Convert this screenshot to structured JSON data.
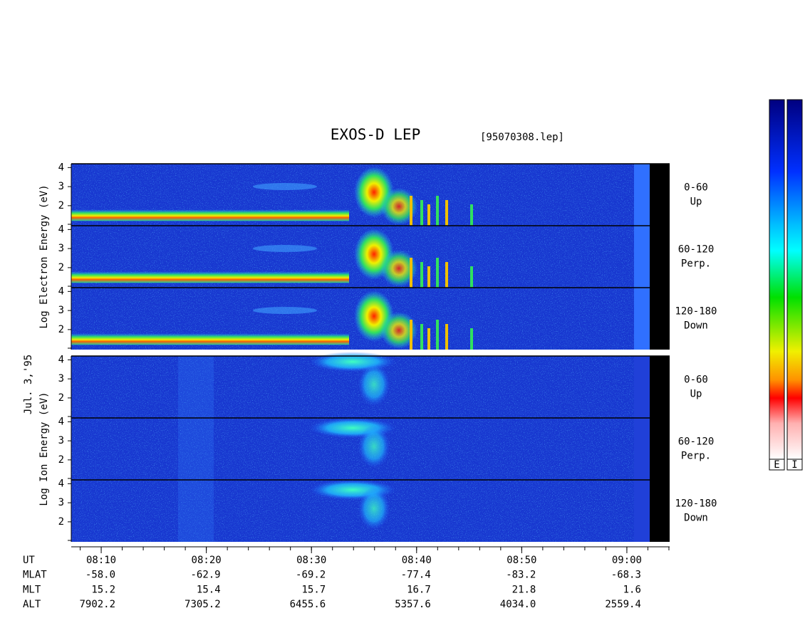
{
  "chart_data": {
    "type": "spectrogram",
    "title": "EXOS-D LEP",
    "file": "[95070308.lep]",
    "date": "Jul. 3,'95",
    "groups": [
      {
        "label": "Log Electron Energy (eV)",
        "panels": [
          {
            "label": "0-60",
            "sublabel": "Up"
          },
          {
            "label": "60-120",
            "sublabel": "Perp."
          },
          {
            "label": "120-180",
            "sublabel": "Down"
          }
        ]
      },
      {
        "label": "Log Ion Energy (eV)",
        "panels": [
          {
            "label": "0-60",
            "sublabel": "Up"
          },
          {
            "label": "60-120",
            "sublabel": "Perp."
          },
          {
            "label": "120-180",
            "sublabel": "Down"
          }
        ]
      }
    ],
    "ylim": [
      0.95,
      4.2
    ],
    "yticks": [
      2,
      3,
      4
    ],
    "xlim": [
      7.15,
      64.07
    ],
    "xticks": [
      {
        "value": 10,
        "label": "08:10"
      },
      {
        "value": 20,
        "label": "08:20"
      },
      {
        "value": 30,
        "label": "08:30"
      },
      {
        "value": 40,
        "label": "08:40"
      },
      {
        "value": 50,
        "label": "08:50"
      },
      {
        "value": 60,
        "label": "09:00"
      }
    ],
    "orbit": [
      {
        "name": "UT",
        "values": []
      },
      {
        "name": "MLAT",
        "values": [
          "-58.0",
          "-62.9",
          "-69.2",
          "-77.4",
          "-83.2",
          "-68.3"
        ]
      },
      {
        "name": "MLT",
        "values": [
          "15.2",
          "15.4",
          "15.7",
          "16.7",
          "21.8",
          "1.6"
        ]
      },
      {
        "name": "ALT",
        "values": [
          "7902.2",
          "7305.2",
          "6455.6",
          "5357.6",
          "4034.0",
          "2559.4"
        ]
      }
    ],
    "colorbar_labels": [
      "E",
      "I"
    ]
  }
}
